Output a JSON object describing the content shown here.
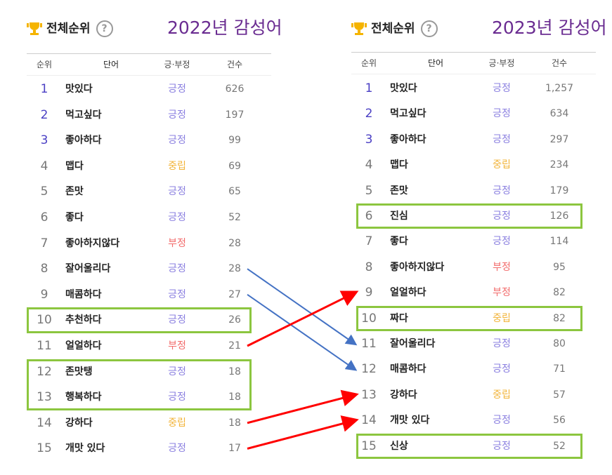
{
  "panels": [
    {
      "header": "전체순위",
      "year_title": "2022년 감성어",
      "columns": [
        "순위",
        "단어",
        "긍·부정",
        "건수"
      ],
      "rows": [
        {
          "rank": "1",
          "word": "맛있다",
          "sentiment": "긍정",
          "count": "626"
        },
        {
          "rank": "2",
          "word": "먹고싶다",
          "sentiment": "긍정",
          "count": "197"
        },
        {
          "rank": "3",
          "word": "좋아하다",
          "sentiment": "긍정",
          "count": "99"
        },
        {
          "rank": "4",
          "word": "맵다",
          "sentiment": "중립",
          "count": "69"
        },
        {
          "rank": "5",
          "word": "존맛",
          "sentiment": "긍정",
          "count": "65"
        },
        {
          "rank": "6",
          "word": "좋다",
          "sentiment": "긍정",
          "count": "52"
        },
        {
          "rank": "7",
          "word": "좋아하지않다",
          "sentiment": "부정",
          "count": "28"
        },
        {
          "rank": "8",
          "word": "잘어울리다",
          "sentiment": "긍정",
          "count": "28"
        },
        {
          "rank": "9",
          "word": "매콤하다",
          "sentiment": "긍정",
          "count": "27"
        },
        {
          "rank": "10",
          "word": "추천하다",
          "sentiment": "긍정",
          "count": "26"
        },
        {
          "rank": "11",
          "word": "얼얼하다",
          "sentiment": "부정",
          "count": "21"
        },
        {
          "rank": "12",
          "word": "존맛탱",
          "sentiment": "긍정",
          "count": "18"
        },
        {
          "rank": "13",
          "word": "행복하다",
          "sentiment": "긍정",
          "count": "18"
        },
        {
          "rank": "14",
          "word": "강하다",
          "sentiment": "중립",
          "count": "18"
        },
        {
          "rank": "15",
          "word": "개맛 있다",
          "sentiment": "긍정",
          "count": "17"
        }
      ],
      "highlighted_ranks": [
        [
          10
        ],
        [
          12,
          13
        ]
      ]
    },
    {
      "header": "전체순위",
      "year_title": "2023년 감성어",
      "columns": [
        "순위",
        "단어",
        "긍·부정",
        "건수"
      ],
      "rows": [
        {
          "rank": "1",
          "word": "맛있다",
          "sentiment": "긍정",
          "count": "1,257"
        },
        {
          "rank": "2",
          "word": "먹고싶다",
          "sentiment": "긍정",
          "count": "634"
        },
        {
          "rank": "3",
          "word": "좋아하다",
          "sentiment": "긍정",
          "count": "297"
        },
        {
          "rank": "4",
          "word": "맵다",
          "sentiment": "중립",
          "count": "234"
        },
        {
          "rank": "5",
          "word": "존맛",
          "sentiment": "긍정",
          "count": "179"
        },
        {
          "rank": "6",
          "word": "진심",
          "sentiment": "긍정",
          "count": "126"
        },
        {
          "rank": "7",
          "word": "좋다",
          "sentiment": "긍정",
          "count": "114"
        },
        {
          "rank": "8",
          "word": "좋아하지않다",
          "sentiment": "부정",
          "count": "95"
        },
        {
          "rank": "9",
          "word": "얼얼하다",
          "sentiment": "부정",
          "count": "82"
        },
        {
          "rank": "10",
          "word": "짜다",
          "sentiment": "중립",
          "count": "82"
        },
        {
          "rank": "11",
          "word": "잘어울리다",
          "sentiment": "긍정",
          "count": "80"
        },
        {
          "rank": "12",
          "word": "매콤하다",
          "sentiment": "긍정",
          "count": "71"
        },
        {
          "rank": "13",
          "word": "강하다",
          "sentiment": "중립",
          "count": "57"
        },
        {
          "rank": "14",
          "word": "개맛 있다",
          "sentiment": "긍정",
          "count": "56"
        },
        {
          "rank": "15",
          "word": "신상",
          "sentiment": "긍정",
          "count": "52"
        }
      ],
      "highlighted_ranks": [
        [
          6
        ],
        [
          10
        ],
        [
          15
        ]
      ]
    }
  ],
  "arrows": [
    {
      "from": 8,
      "to": 11,
      "color": "#4472c4"
    },
    {
      "from": 9,
      "to": 12,
      "color": "#4472c4"
    },
    {
      "from": 11,
      "to": 9,
      "color": "#ff0000"
    },
    {
      "from": 14,
      "to": 13,
      "color": "#ff0000"
    },
    {
      "from": 15,
      "to": 14,
      "color": "#ff0000"
    }
  ],
  "colors": {
    "top_rank": "#4a3fc4",
    "rank": "#777777",
    "긍정": "#8b80e0",
    "부정": "#f26b6b",
    "중립": "#f2b43a",
    "highlight": "#8cc63f",
    "title": "#6a2c91"
  }
}
